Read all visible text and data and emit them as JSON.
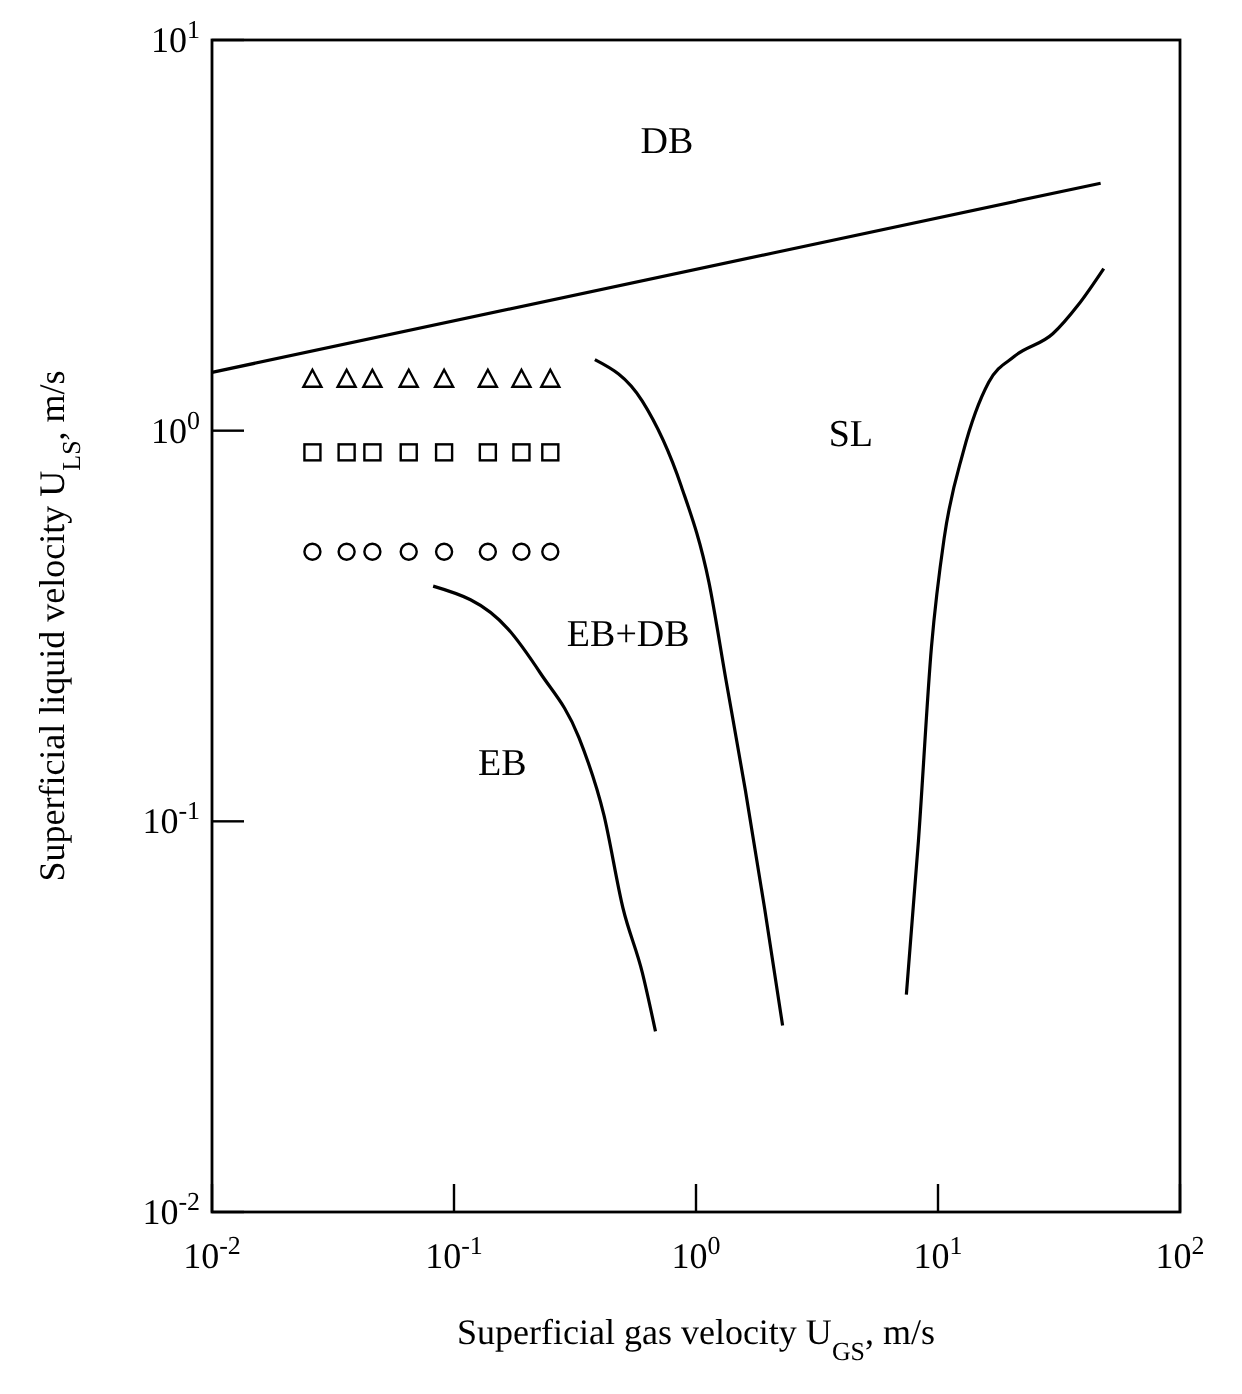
{
  "chart_data": {
    "type": "line",
    "xlabel": "Superficial gas velocity  U$_{GS}$,  m/s",
    "ylabel": "Superficial liquid velocity  U$_{LS}$,  m/s",
    "log": "xy",
    "xlim": [
      0.01,
      100
    ],
    "ylim": [
      0.01,
      10
    ],
    "xticks": [
      {
        "value": 0.01,
        "label": "10$^{-2}$"
      },
      {
        "value": 0.1,
        "label": "10$^{-1}$"
      },
      {
        "value": 1,
        "label": "10$^{0}$"
      },
      {
        "value": 10,
        "label": "10$^{1}$"
      },
      {
        "value": 100,
        "label": "10$^{2}$"
      }
    ],
    "yticks": [
      {
        "value": 0.01,
        "label": "10$^{-2}$"
      },
      {
        "value": 0.1,
        "label": "10$^{-1}$"
      },
      {
        "value": 1,
        "label": "10$^{0}$"
      },
      {
        "value": 10,
        "label": "10$^{1}$"
      }
    ],
    "grid": false,
    "series": [
      {
        "color": "#000000",
        "x": [
          0.01,
          47
        ],
        "values": [
          1.41,
          4.3
        ]
      },
      {
        "color": "#000000",
        "x": [
          0.082,
          0.167,
          0.228,
          0.328,
          0.416,
          0.499,
          0.6,
          0.68
        ],
        "values": [
          0.4,
          0.311,
          0.239,
          0.164,
          0.104,
          0.06,
          0.041,
          0.029
        ]
      },
      {
        "color": "#000000",
        "x": [
          0.382,
          0.6,
          0.87,
          1.13,
          1.33,
          1.6,
          1.92,
          2.28
        ],
        "values": [
          1.52,
          1.19,
          0.72,
          0.41,
          0.23,
          0.12,
          0.06,
          0.03
        ]
      },
      {
        "color": "#000000",
        "x": [
          7.4,
          8.3,
          9.4,
          10.6,
          12.7,
          16.2,
          20.7,
          29.8,
          38,
          48.4
        ],
        "values": [
          0.036,
          0.089,
          0.28,
          0.53,
          0.88,
          1.33,
          1.55,
          1.77,
          2.1,
          2.6
        ]
      },
      {
        "type": "scatter",
        "marker": "triangle",
        "color": "#000000",
        "x": [
          0.026,
          0.036,
          0.046,
          0.065,
          0.091,
          0.138,
          0.19,
          0.25
        ],
        "values": [
          1.35,
          1.35,
          1.35,
          1.35,
          1.35,
          1.35,
          1.35,
          1.35
        ]
      },
      {
        "type": "scatter",
        "marker": "square",
        "color": "#000000",
        "x": [
          0.026,
          0.036,
          0.046,
          0.065,
          0.091,
          0.138,
          0.19,
          0.25
        ],
        "values": [
          0.88,
          0.88,
          0.88,
          0.88,
          0.88,
          0.88,
          0.88,
          0.88
        ]
      },
      {
        "type": "scatter",
        "marker": "circle",
        "color": "#000000",
        "x": [
          0.026,
          0.036,
          0.046,
          0.065,
          0.091,
          0.138,
          0.19,
          0.25
        ],
        "values": [
          0.49,
          0.49,
          0.49,
          0.49,
          0.49,
          0.49,
          0.49,
          0.49
        ]
      }
    ],
    "annotations": [
      "DB",
      "SL",
      "EB+DB",
      "EB"
    ]
  }
}
